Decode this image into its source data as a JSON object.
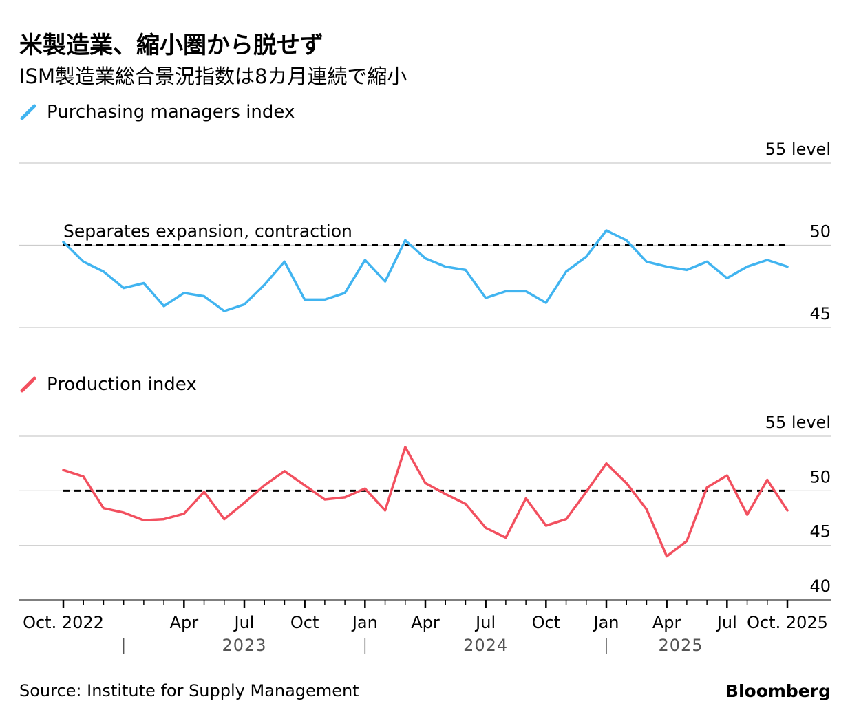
{
  "header": {
    "title": "米製造業、縮小圏から脱せず",
    "subtitle": "ISM製造業総合景況指数は8カ月連続で縮小"
  },
  "footer": {
    "source": "Source: Institute for Supply Management",
    "brand": "Bloomberg"
  },
  "colors": {
    "pmi": "#41b4f0",
    "production": "#f2505f",
    "grid": "#cccccc",
    "reference": "#000000"
  },
  "x_axis": {
    "month_labels": [
      "Oct. 2022",
      "Apr",
      "Jul",
      "Oct",
      "Jan",
      "Apr",
      "Jul",
      "Oct",
      "Jan",
      "Apr",
      "Jul",
      "Oct. 2025"
    ],
    "month_label_indices": [
      0,
      6,
      9,
      12,
      15,
      18,
      21,
      24,
      27,
      30,
      33,
      36
    ],
    "year_labels": [
      "2023",
      "2024",
      "2025"
    ],
    "year_start_indices": [
      3,
      15,
      27
    ]
  },
  "chart_data": [
    {
      "type": "line",
      "legend": "Purchasing managers index",
      "ylim": [
        45,
        55
      ],
      "yticks": [
        45,
        50,
        55
      ],
      "ytick_labels": [
        "45",
        "50",
        "55 level"
      ],
      "reference": {
        "value": 50,
        "label": "Separates expansion, contraction"
      },
      "x": [
        "2022-10",
        "2022-11",
        "2022-12",
        "2023-01",
        "2023-02",
        "2023-03",
        "2023-04",
        "2023-05",
        "2023-06",
        "2023-07",
        "2023-08",
        "2023-09",
        "2023-10",
        "2023-11",
        "2023-12",
        "2024-01",
        "2024-02",
        "2024-03",
        "2024-04",
        "2024-05",
        "2024-06",
        "2024-07",
        "2024-08",
        "2024-09",
        "2024-10",
        "2024-11",
        "2024-12",
        "2025-01",
        "2025-02",
        "2025-03",
        "2025-04",
        "2025-05",
        "2025-06",
        "2025-07",
        "2025-08",
        "2025-09",
        "2025-10"
      ],
      "series": [
        {
          "name": "Purchasing managers index",
          "values": [
            50.2,
            49.0,
            48.4,
            47.4,
            47.7,
            46.3,
            47.1,
            46.9,
            46.0,
            46.4,
            47.6,
            49.0,
            46.7,
            46.7,
            47.1,
            49.1,
            47.8,
            50.3,
            49.2,
            48.7,
            48.5,
            46.8,
            47.2,
            47.2,
            46.5,
            48.4,
            49.3,
            50.9,
            50.3,
            49.0,
            48.7,
            48.5,
            49.0,
            48.0,
            48.7,
            49.1,
            48.7
          ]
        }
      ]
    },
    {
      "type": "line",
      "legend": "Production index",
      "ylim": [
        40,
        55
      ],
      "yticks": [
        40,
        45,
        50,
        55
      ],
      "ytick_labels": [
        "40",
        "45",
        "50",
        "55 level"
      ],
      "reference": {
        "value": 50
      },
      "x": [
        "2022-10",
        "2022-11",
        "2022-12",
        "2023-01",
        "2023-02",
        "2023-03",
        "2023-04",
        "2023-05",
        "2023-06",
        "2023-07",
        "2023-08",
        "2023-09",
        "2023-10",
        "2023-11",
        "2023-12",
        "2024-01",
        "2024-02",
        "2024-03",
        "2024-04",
        "2024-05",
        "2024-06",
        "2024-07",
        "2024-08",
        "2024-09",
        "2024-10",
        "2024-11",
        "2024-12",
        "2025-01",
        "2025-02",
        "2025-03",
        "2025-04",
        "2025-05",
        "2025-06",
        "2025-07",
        "2025-08",
        "2025-09",
        "2025-10"
      ],
      "series": [
        {
          "name": "Production index",
          "values": [
            51.9,
            51.3,
            48.4,
            48.0,
            47.3,
            47.4,
            47.9,
            49.9,
            47.4,
            48.9,
            50.5,
            51.8,
            50.5,
            49.2,
            49.4,
            50.2,
            48.2,
            54.0,
            50.7,
            49.7,
            48.8,
            46.6,
            45.7,
            49.3,
            46.8,
            47.4,
            49.9,
            52.5,
            50.7,
            48.3,
            44.0,
            45.4,
            50.3,
            51.4,
            47.8,
            51.0,
            48.2
          ]
        }
      ]
    }
  ]
}
